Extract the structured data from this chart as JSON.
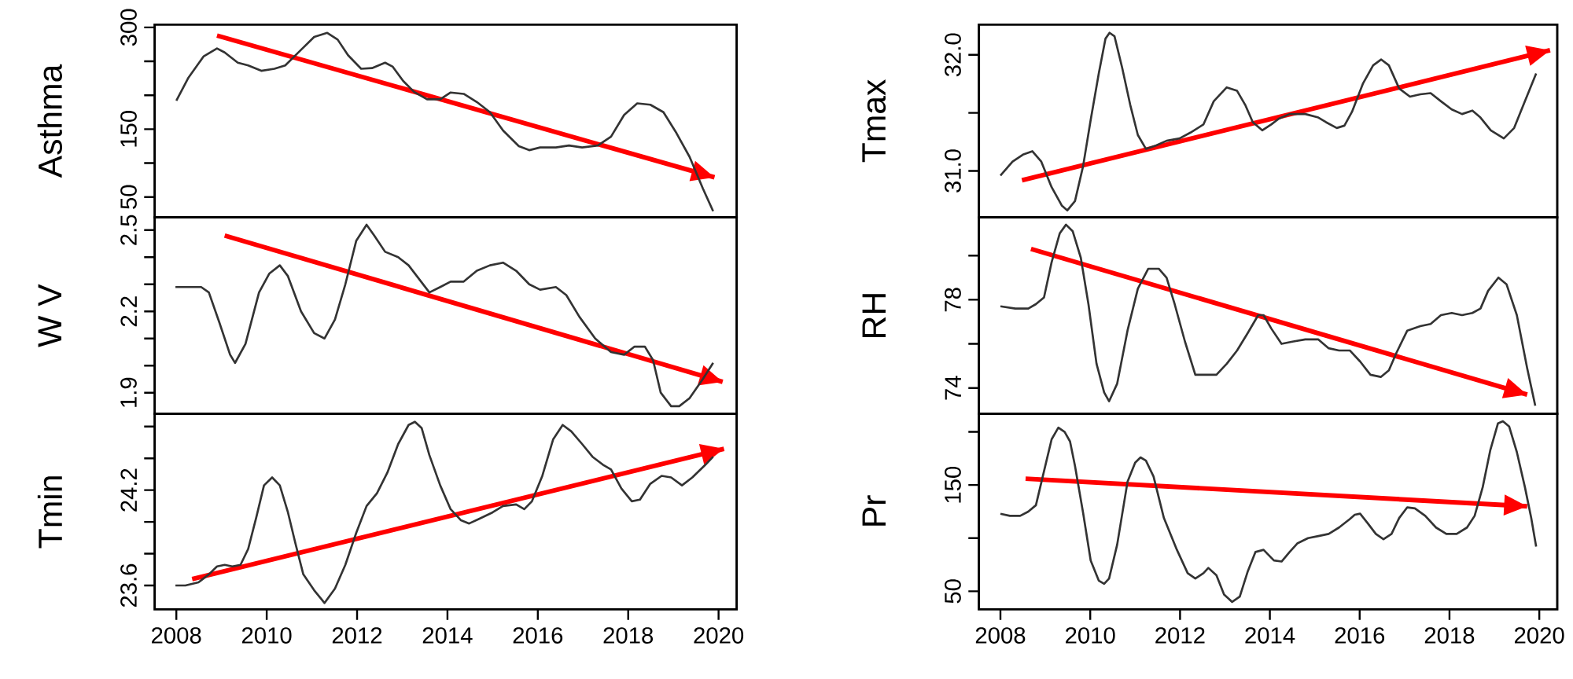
{
  "chart_data": [
    {
      "type": "line",
      "ylabel": "Asthma",
      "xlim": [
        2007.52,
        2020.4
      ],
      "ylim": [
        20,
        304
      ],
      "tick_labels": "y",
      "yticks": [
        50,
        {
          "value": 100,
          "label": null
        },
        150,
        {
          "value": 200,
          "label": null
        },
        {
          "value": 250,
          "label": null
        },
        300
      ],
      "series": [
        {
          "color": "#333333",
          "x": [
            2008.0,
            2008.26,
            2008.6,
            2008.9,
            2009.07,
            2009.36,
            2009.59,
            2009.88,
            2010.17,
            2010.41,
            2010.76,
            2011.05,
            2011.34,
            2011.57,
            2011.8,
            2012.09,
            2012.33,
            2012.62,
            2012.79,
            2013.02,
            2013.26,
            2013.55,
            2013.84,
            2014.07,
            2014.36,
            2014.65,
            2014.94,
            2015.23,
            2015.58,
            2015.81,
            2016.05,
            2016.4,
            2016.69,
            2016.98,
            2017.33,
            2017.62,
            2017.91,
            2018.2,
            2018.49,
            2018.78,
            2019.07,
            2019.36,
            2019.65,
            2019.88
          ],
          "values": [
            192,
            225,
            257,
            269,
            263,
            248,
            244,
            236,
            239,
            244,
            267,
            286,
            292,
            282,
            259,
            239,
            240,
            248,
            242,
            221,
            205,
            194,
            194,
            204,
            202,
            190,
            175,
            148,
            125,
            119,
            123,
            123,
            126,
            123,
            126,
            139,
            171,
            188,
            186,
            175,
            144,
            109,
            63,
            29
          ]
        },
        {
          "type": "line",
          "color": "#ff0000",
          "x": [
            2008.9,
            2019.91
          ],
          "values": [
            288,
            79
          ]
        }
      ]
    },
    {
      "type": "line",
      "ylabel": "W V",
      "xlim": [
        2007.52,
        2020.4
      ],
      "ylim": [
        1.822,
        2.547
      ],
      "tick_labels": "y",
      "yticks": [
        1.9,
        {
          "value": 2.0,
          "label": null
        },
        {
          "value": 2.1,
          "label": null
        },
        2.2,
        {
          "value": 2.3,
          "label": null
        },
        {
          "value": 2.4,
          "label": null
        },
        2.5
      ],
      "series": [
        {
          "color": "#333333",
          "x": [
            2007.98,
            2008.55,
            2008.72,
            2008.95,
            2009.19,
            2009.3,
            2009.53,
            2009.83,
            2010.06,
            2010.29,
            2010.47,
            2010.76,
            2011.05,
            2011.28,
            2011.51,
            2011.74,
            2011.98,
            2012.21,
            2012.38,
            2012.62,
            2012.91,
            2013.14,
            2013.37,
            2013.6,
            2013.84,
            2014.07,
            2014.36,
            2014.65,
            2014.94,
            2015.23,
            2015.52,
            2015.81,
            2016.05,
            2016.4,
            2016.63,
            2016.92,
            2017.27,
            2017.62,
            2017.91,
            2018.14,
            2018.37,
            2018.55,
            2018.72,
            2018.95,
            2019.13,
            2019.36,
            2019.65,
            2019.88
          ],
          "values": [
            2.29,
            2.29,
            2.27,
            2.16,
            2.04,
            2.01,
            2.08,
            2.27,
            2.34,
            2.37,
            2.33,
            2.2,
            2.12,
            2.1,
            2.17,
            2.3,
            2.46,
            2.52,
            2.48,
            2.42,
            2.4,
            2.37,
            2.32,
            2.27,
            2.29,
            2.31,
            2.31,
            2.35,
            2.37,
            2.38,
            2.35,
            2.3,
            2.28,
            2.29,
            2.26,
            2.18,
            2.1,
            2.05,
            2.04,
            2.07,
            2.07,
            2.02,
            1.9,
            1.85,
            1.85,
            1.88,
            1.95,
            2.01
          ]
        },
        {
          "type": "line",
          "color": "#ff0000",
          "x": [
            2009.07,
            2020.09
          ],
          "values": [
            2.48,
            1.94
          ]
        }
      ]
    },
    {
      "type": "line",
      "ylabel": "Tmin",
      "xlim": [
        2007.52,
        2020.4
      ],
      "ylim": [
        23.45,
        24.68
      ],
      "xticks": [
        2008,
        2010,
        2012,
        2014,
        2016,
        2018,
        2020
      ],
      "yticks": [
        23.6,
        {
          "value": 23.8,
          "label": null
        },
        {
          "value": 24.0,
          "label": null
        },
        24.2,
        {
          "value": 24.4,
          "label": null
        },
        {
          "value": 24.6,
          "label": null
        }
      ],
      "series": [
        {
          "color": "#333333",
          "x": [
            2007.98,
            2008.2,
            2008.49,
            2008.72,
            2008.9,
            2009.07,
            2009.24,
            2009.42,
            2009.59,
            2009.77,
            2009.94,
            2010.12,
            2010.29,
            2010.47,
            2010.64,
            2010.81,
            2011.05,
            2011.28,
            2011.51,
            2011.74,
            2011.98,
            2012.21,
            2012.44,
            2012.67,
            2012.91,
            2013.14,
            2013.28,
            2013.43,
            2013.6,
            2013.84,
            2014.07,
            2014.3,
            2014.48,
            2014.71,
            2015.0,
            2015.23,
            2015.52,
            2015.7,
            2015.87,
            2016.1,
            2016.34,
            2016.55,
            2016.74,
            2016.98,
            2017.21,
            2017.44,
            2017.62,
            2017.85,
            2018.08,
            2018.26,
            2018.49,
            2018.74,
            2018.95,
            2019.19,
            2019.42,
            2019.71,
            2019.88
          ],
          "values": [
            23.6,
            23.6,
            23.62,
            23.67,
            23.72,
            23.73,
            23.72,
            23.73,
            23.83,
            24.03,
            24.23,
            24.28,
            24.23,
            24.06,
            23.86,
            23.67,
            23.57,
            23.49,
            23.58,
            23.73,
            23.93,
            24.1,
            24.18,
            24.31,
            24.49,
            24.61,
            24.63,
            24.59,
            24.42,
            24.23,
            24.08,
            24.01,
            23.99,
            24.02,
            24.06,
            24.1,
            24.11,
            24.08,
            24.13,
            24.29,
            24.52,
            24.61,
            24.57,
            24.49,
            24.41,
            24.36,
            24.33,
            24.21,
            24.13,
            24.14,
            24.24,
            24.29,
            24.28,
            24.23,
            24.28,
            24.36,
            24.41
          ]
        },
        {
          "type": "line",
          "color": "#ff0000",
          "x": [
            2008.35,
            2020.12
          ],
          "values": [
            23.64,
            24.46
          ]
        }
      ]
    },
    {
      "type": "line",
      "ylabel": "Tmax",
      "xlim": [
        2007.52,
        2020.4
      ],
      "ylim": [
        30.6,
        32.26
      ],
      "tick_labels": "y",
      "yticks": [
        {
          "value": 31,
          "label": "31.0"
        },
        {
          "value": 31.5,
          "label": null
        },
        {
          "value": 32,
          "label": "32.0"
        }
      ],
      "series": [
        {
          "color": "#333333",
          "x": [
            2008.0,
            2008.27,
            2008.5,
            2008.71,
            2008.91,
            2009.14,
            2009.37,
            2009.49,
            2009.66,
            2009.84,
            2010.01,
            2010.19,
            2010.34,
            2010.43,
            2010.54,
            2010.71,
            2010.89,
            2011.06,
            2011.24,
            2011.47,
            2011.7,
            2011.99,
            2012.23,
            2012.52,
            2012.75,
            2013.04,
            2013.27,
            2013.45,
            2013.62,
            2013.83,
            2014.03,
            2014.2,
            2014.44,
            2014.79,
            2015.08,
            2015.25,
            2015.49,
            2015.66,
            2015.83,
            2016.07,
            2016.3,
            2016.48,
            2016.65,
            2016.88,
            2017.12,
            2017.35,
            2017.58,
            2017.81,
            2018.05,
            2018.28,
            2018.51,
            2018.69,
            2018.92,
            2019.21,
            2019.44,
            2019.68,
            2019.93
          ],
          "values": [
            30.96,
            31.08,
            31.14,
            31.17,
            31.08,
            30.86,
            30.7,
            30.66,
            30.74,
            31.04,
            31.44,
            31.84,
            32.14,
            32.19,
            32.16,
            31.89,
            31.57,
            31.31,
            31.19,
            31.22,
            31.26,
            31.28,
            31.33,
            31.4,
            31.6,
            31.72,
            31.69,
            31.57,
            31.42,
            31.35,
            31.4,
            31.45,
            31.49,
            31.49,
            31.46,
            31.42,
            31.37,
            31.39,
            31.51,
            31.75,
            31.91,
            31.96,
            31.91,
            31.71,
            31.64,
            31.66,
            31.67,
            31.6,
            31.53,
            31.49,
            31.52,
            31.46,
            31.35,
            31.28,
            31.37,
            31.6,
            31.84
          ]
        },
        {
          "type": "line",
          "color": "#ff0000",
          "x": [
            2008.48,
            2020.24
          ],
          "values": [
            30.92,
            32.04
          ]
        }
      ]
    },
    {
      "type": "line",
      "ylabel": "RH",
      "xlim": [
        2007.52,
        2020.4
      ],
      "ylim": [
        72.83,
        81.73
      ],
      "tick_labels": "y",
      "yticks": [
        74,
        {
          "value": 76,
          "label": null
        },
        78,
        {
          "value": 80,
          "label": null
        }
      ],
      "series": [
        {
          "color": "#333333",
          "x": [
            2008.0,
            2008.33,
            2008.62,
            2008.79,
            2008.97,
            2009.14,
            2009.32,
            2009.46,
            2009.61,
            2009.79,
            2009.96,
            2010.14,
            2010.31,
            2010.42,
            2010.6,
            2010.83,
            2011.06,
            2011.29,
            2011.53,
            2011.7,
            2011.88,
            2012.11,
            2012.34,
            2012.58,
            2012.81,
            2013.04,
            2013.27,
            2013.51,
            2013.74,
            2013.86,
            2014.03,
            2014.26,
            2014.5,
            2014.79,
            2015.08,
            2015.31,
            2015.54,
            2015.78,
            2016.01,
            2016.24,
            2016.47,
            2016.65,
            2016.82,
            2017.06,
            2017.35,
            2017.58,
            2017.81,
            2018.05,
            2018.28,
            2018.51,
            2018.69,
            2018.86,
            2019.09,
            2019.27,
            2019.5,
            2019.73,
            2019.91
          ],
          "values": [
            77.7,
            77.6,
            77.6,
            77.8,
            78.1,
            79.7,
            81.0,
            81.4,
            81.1,
            79.9,
            77.8,
            75.1,
            73.8,
            73.4,
            74.2,
            76.6,
            78.5,
            79.4,
            79.4,
            79.0,
            77.8,
            76.1,
            74.6,
            74.6,
            74.6,
            75.1,
            75.7,
            76.5,
            77.3,
            77.3,
            76.7,
            76.0,
            76.1,
            76.2,
            76.2,
            75.8,
            75.7,
            75.7,
            75.2,
            74.6,
            74.5,
            74.8,
            75.6,
            76.6,
            76.8,
            76.9,
            77.3,
            77.4,
            77.3,
            77.4,
            77.6,
            78.4,
            79.0,
            78.7,
            77.3,
            74.9,
            73.2
          ]
        },
        {
          "type": "line",
          "color": "#ff0000",
          "x": [
            2008.68,
            2019.73
          ],
          "values": [
            80.3,
            73.7
          ]
        }
      ]
    },
    {
      "type": "line",
      "ylabel": "Pr",
      "xlim": [
        2007.52,
        2020.4
      ],
      "ylim": [
        33,
        217
      ],
      "xticks": [
        2008,
        2010,
        2012,
        2014,
        2016,
        2018,
        2020
      ],
      "yticks": [
        50,
        {
          "value": 100,
          "label": null
        },
        150,
        {
          "value": 200,
          "label": null
        }
      ],
      "series": [
        {
          "color": "#333333",
          "x": [
            2008.0,
            2008.21,
            2008.44,
            2008.62,
            2008.79,
            2008.97,
            2009.14,
            2009.29,
            2009.43,
            2009.55,
            2009.66,
            2009.84,
            2010.01,
            2010.19,
            2010.31,
            2010.42,
            2010.6,
            2010.83,
            2011.0,
            2011.12,
            2011.24,
            2011.41,
            2011.64,
            2011.93,
            2012.17,
            2012.34,
            2012.52,
            2012.63,
            2012.81,
            2012.98,
            2013.16,
            2013.33,
            2013.51,
            2013.68,
            2013.86,
            2014.09,
            2014.26,
            2014.44,
            2014.61,
            2014.85,
            2015.08,
            2015.31,
            2015.54,
            2015.78,
            2015.89,
            2016.01,
            2016.18,
            2016.36,
            2016.53,
            2016.71,
            2016.88,
            2017.06,
            2017.23,
            2017.46,
            2017.7,
            2017.93,
            2018.16,
            2018.39,
            2018.56,
            2018.74,
            2018.91,
            2019.08,
            2019.19,
            2019.33,
            2019.5,
            2019.68,
            2019.82,
            2019.93
          ],
          "values": [
            123,
            121,
            121,
            125,
            131,
            163,
            193,
            204,
            200,
            191,
            168,
            124,
            79,
            60,
            57,
            62,
            94,
            153,
            171,
            176,
            173,
            158,
            119,
            89,
            67,
            62,
            67,
            72,
            65,
            47,
            40,
            45,
            69,
            87,
            89,
            79,
            78,
            87,
            95,
            100,
            102,
            104,
            110,
            118,
            122,
            123,
            114,
            104,
            99,
            104,
            119,
            129,
            128,
            121,
            110,
            104,
            104,
            110,
            121,
            148,
            183,
            208,
            210,
            205,
            181,
            148,
            119,
            92
          ]
        },
        {
          "type": "line",
          "color": "#ff0000",
          "x": [
            2008.56,
            2019.73
          ],
          "values": [
            156,
            130
          ]
        }
      ]
    }
  ]
}
